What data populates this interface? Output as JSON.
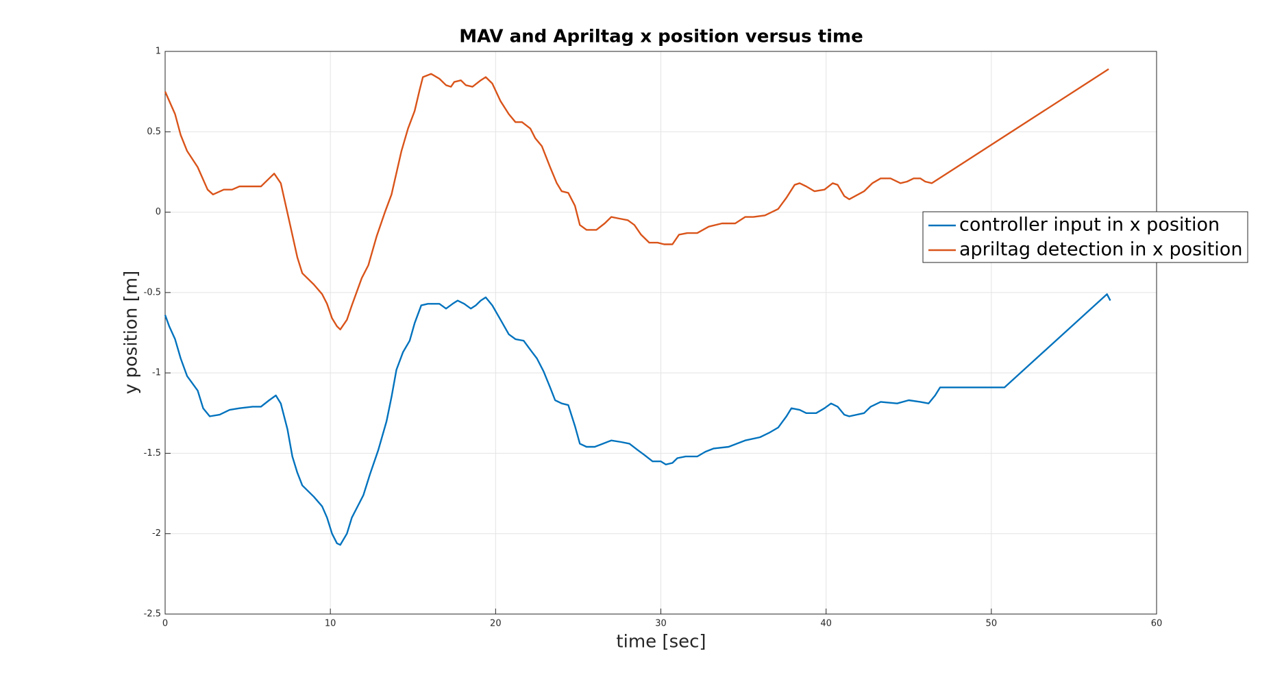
{
  "chart_data": {
    "type": "line",
    "title": "MAV and Apriltag x position versus time",
    "xlabel": "time [sec]",
    "ylabel": "y position [m]",
    "xlim": [
      0,
      60
    ],
    "xticks": [
      0,
      10,
      20,
      30,
      40,
      50,
      60
    ],
    "ylim": [
      -2.5,
      1
    ],
    "yticks": [
      -2.5,
      -2,
      -1.5,
      -1,
      -0.5,
      0,
      0.5,
      1
    ],
    "grid": true,
    "legend": "east",
    "series": [
      {
        "name": "controller input in x position",
        "color": "#0072BD",
        "x": [
          0,
          0.25,
          0.6,
          0.94,
          1.33,
          1.97,
          2.3,
          2.7,
          3.3,
          3.9,
          4.5,
          5.3,
          5.8,
          6.3,
          6.7,
          7.0,
          7.4,
          7.7,
          8.0,
          8.3,
          9.0,
          9.5,
          9.8,
          10.1,
          10.4,
          10.6,
          11.0,
          11.3,
          11.7,
          12.0,
          12.4,
          12.9,
          13.4,
          13.7,
          14.0,
          14.4,
          14.8,
          15.1,
          15.5,
          15.9,
          16.3,
          16.6,
          17.0,
          17.4,
          17.7,
          18.1,
          18.5,
          18.8,
          19.1,
          19.4,
          19.8,
          20.3,
          20.8,
          21.2,
          21.7,
          22.2,
          22.5,
          22.9,
          23.3,
          23.6,
          24.0,
          24.4,
          24.8,
          25.1,
          25.5,
          26.0,
          26.5,
          27.0,
          27.6,
          28.1,
          28.6,
          29.0,
          29.5,
          30.0,
          30.3,
          30.7,
          31.0,
          31.5,
          32.2,
          32.7,
          33.2,
          34.1,
          34.6,
          35.1,
          36.0,
          36.6,
          37.1,
          37.6,
          37.9,
          38.4,
          38.8,
          39.4,
          39.9,
          40.3,
          40.7,
          41.1,
          41.4,
          42.3,
          42.7,
          43.3,
          44.3,
          45.0,
          45.7,
          46.2,
          46.6,
          46.9,
          50.8,
          57.0,
          57.2
        ],
        "values": [
          -0.64,
          -0.71,
          -0.79,
          -0.91,
          -1.02,
          -1.11,
          -1.22,
          -1.27,
          -1.26,
          -1.23,
          -1.22,
          -1.21,
          -1.21,
          -1.17,
          -1.14,
          -1.19,
          -1.35,
          -1.52,
          -1.62,
          -1.7,
          -1.77,
          -1.83,
          -1.9,
          -2.0,
          -2.06,
          -2.07,
          -2.0,
          -1.9,
          -1.82,
          -1.76,
          -1.63,
          -1.48,
          -1.3,
          -1.15,
          -0.98,
          -0.87,
          -0.8,
          -0.69,
          -0.58,
          -0.57,
          -0.57,
          -0.57,
          -0.6,
          -0.57,
          -0.55,
          -0.57,
          -0.6,
          -0.58,
          -0.55,
          -0.53,
          -0.58,
          -0.67,
          -0.76,
          -0.79,
          -0.8,
          -0.87,
          -0.91,
          -0.99,
          -1.09,
          -1.17,
          -1.19,
          -1.2,
          -1.33,
          -1.44,
          -1.46,
          -1.46,
          -1.44,
          -1.42,
          -1.43,
          -1.44,
          -1.48,
          -1.51,
          -1.55,
          -1.55,
          -1.57,
          -1.56,
          -1.53,
          -1.52,
          -1.52,
          -1.49,
          -1.47,
          -1.46,
          -1.44,
          -1.42,
          -1.4,
          -1.37,
          -1.34,
          -1.27,
          -1.22,
          -1.23,
          -1.25,
          -1.25,
          -1.22,
          -1.19,
          -1.21,
          -1.26,
          -1.27,
          -1.25,
          -1.21,
          -1.18,
          -1.19,
          -1.17,
          -1.18,
          -1.19,
          -1.14,
          -1.09,
          -1.09,
          -0.51,
          -0.55
        ]
      },
      {
        "name": "apriltag detection in x position",
        "color": "#D95319",
        "x": [
          0,
          0.6,
          0.94,
          1.33,
          1.97,
          2.57,
          2.9,
          3.55,
          4.05,
          4.5,
          5.0,
          5.8,
          6.3,
          6.6,
          7.0,
          7.5,
          8.0,
          8.3,
          9.0,
          9.5,
          9.8,
          10.1,
          10.4,
          10.6,
          11.0,
          11.3,
          11.9,
          12.3,
          12.8,
          13.3,
          13.7,
          14.3,
          14.7,
          15.1,
          15.4,
          15.6,
          16.1,
          16.6,
          17.0,
          17.3,
          17.5,
          17.9,
          18.2,
          18.6,
          19.1,
          19.4,
          19.8,
          20.3,
          20.8,
          21.2,
          21.6,
          22.1,
          22.4,
          22.8,
          23.3,
          23.7,
          24.0,
          24.4,
          24.8,
          25.1,
          25.5,
          26.1,
          26.6,
          27.0,
          27.5,
          28.0,
          28.4,
          28.8,
          29.3,
          29.8,
          30.2,
          30.7,
          31.1,
          31.6,
          32.2,
          32.9,
          33.7,
          34.5,
          35.1,
          35.6,
          36.3,
          37.1,
          37.6,
          38.1,
          38.4,
          38.8,
          39.3,
          39.9,
          40.4,
          40.7,
          41.1,
          41.4,
          42.3,
          42.8,
          43.3,
          43.9,
          44.5,
          44.9,
          45.3,
          45.7,
          46.0,
          46.4,
          57.1
        ],
        "values": [
          0.75,
          0.61,
          0.48,
          0.38,
          0.28,
          0.14,
          0.11,
          0.14,
          0.14,
          0.16,
          0.16,
          0.16,
          0.21,
          0.24,
          0.18,
          -0.05,
          -0.28,
          -0.38,
          -0.45,
          -0.51,
          -0.57,
          -0.66,
          -0.71,
          -0.73,
          -0.67,
          -0.58,
          -0.41,
          -0.33,
          -0.15,
          0.0,
          0.11,
          0.38,
          0.52,
          0.63,
          0.76,
          0.84,
          0.86,
          0.83,
          0.79,
          0.78,
          0.81,
          0.82,
          0.79,
          0.78,
          0.82,
          0.84,
          0.8,
          0.69,
          0.61,
          0.56,
          0.56,
          0.52,
          0.46,
          0.41,
          0.28,
          0.18,
          0.13,
          0.12,
          0.04,
          -0.08,
          -0.11,
          -0.11,
          -0.07,
          -0.03,
          -0.04,
          -0.05,
          -0.08,
          -0.14,
          -0.19,
          -0.19,
          -0.2,
          -0.2,
          -0.14,
          -0.13,
          -0.13,
          -0.09,
          -0.07,
          -0.07,
          -0.03,
          -0.03,
          -0.02,
          0.02,
          0.09,
          0.17,
          0.18,
          0.16,
          0.13,
          0.14,
          0.18,
          0.17,
          0.1,
          0.08,
          0.13,
          0.18,
          0.21,
          0.21,
          0.18,
          0.19,
          0.21,
          0.21,
          0.19,
          0.18,
          0.89
        ]
      }
    ]
  }
}
